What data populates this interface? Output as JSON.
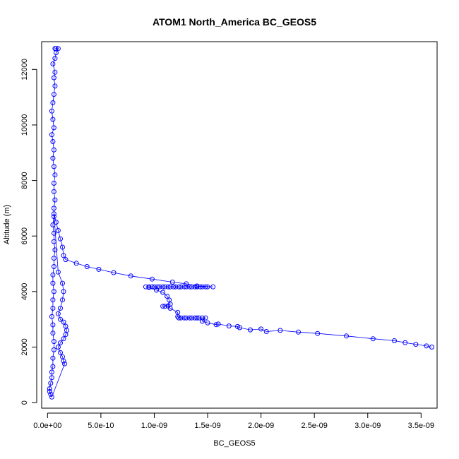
{
  "chart_data": {
    "type": "scatter",
    "title": "ATOM1 North_America BC_GEOS5",
    "xlabel": "BC_GEOS5",
    "ylabel": "Altitude (m)",
    "xlim": [
      -5.5e-11,
      3.65e-09
    ],
    "ylim": [
      -200,
      13000
    ],
    "x_ticks": [
      0,
      5e-10,
      1e-09,
      1.5e-09,
      2e-09,
      2.5e-09,
      3e-09,
      3.5e-09
    ],
    "x_tick_labels": [
      "0.0e+00",
      "5.0e-10",
      "1.0e-09",
      "1.5e-09",
      "2.0e-09",
      "2.5e-09",
      "3.0e-09",
      "3.5e-09"
    ],
    "y_ticks": [
      0,
      2000,
      4000,
      6000,
      8000,
      10000,
      12000
    ],
    "y_tick_labels": [
      "0",
      "2000",
      "4000",
      "6000",
      "8000",
      "10000",
      "12000"
    ],
    "marker": "open-circle",
    "color": "#0000ff",
    "grid": false,
    "series": [
      {
        "points": [
          [
            3.6e-09,
            2000
          ],
          [
            3.55e-09,
            2040
          ],
          [
            3.45e-09,
            2100
          ],
          [
            3.35e-09,
            2160
          ],
          [
            3.25e-09,
            2230
          ],
          [
            3.05e-09,
            2300
          ],
          [
            2.8e-09,
            2400
          ],
          [
            2.53e-09,
            2490
          ],
          [
            2.35e-09,
            2540
          ],
          [
            2.18e-09,
            2600
          ],
          [
            2.05e-09,
            2560
          ],
          [
            2e-09,
            2650
          ],
          [
            1.9e-09,
            2620
          ],
          [
            1.8e-09,
            2700
          ],
          [
            1.78e-09,
            2740
          ],
          [
            1.7e-09,
            2760
          ],
          [
            1.6e-09,
            2830
          ],
          [
            1.58e-09,
            2810
          ],
          [
            1.5e-09,
            2870
          ],
          [
            1.45e-09,
            2930
          ],
          [
            1.48e-09,
            3050
          ],
          [
            1.45e-09,
            3050
          ],
          [
            1.42e-09,
            3050
          ],
          [
            1.4e-09,
            3050
          ],
          [
            1.38e-09,
            3050
          ],
          [
            1.35e-09,
            3050
          ],
          [
            1.33e-09,
            3050
          ],
          [
            1.3e-09,
            3050
          ],
          [
            1.28e-09,
            3050
          ],
          [
            1.25e-09,
            3050
          ],
          [
            1.23e-09,
            3050
          ],
          [
            1.22e-09,
            3100
          ],
          [
            1.22e-09,
            3250
          ],
          [
            1.15e-09,
            3400
          ],
          [
            1.13e-09,
            3480
          ],
          [
            1.1e-09,
            3470
          ],
          [
            1.08e-09,
            3470
          ],
          [
            1.15e-09,
            3550
          ],
          [
            1.14e-09,
            3700
          ],
          [
            1.12e-09,
            3830
          ],
          [
            1.08e-09,
            3970
          ],
          [
            1.02e-09,
            4050
          ],
          [
            9.5e-10,
            4150
          ],
          [
            9.2e-10,
            4170
          ],
          [
            9.5e-10,
            4170
          ],
          [
            9.8e-10,
            4170
          ],
          [
            1e-09,
            4170
          ],
          [
            1.03e-09,
            4170
          ],
          [
            1.05e-09,
            4170
          ],
          [
            1.08e-09,
            4170
          ],
          [
            1.1e-09,
            4170
          ],
          [
            1.13e-09,
            4170
          ],
          [
            1.15e-09,
            4170
          ],
          [
            1.18e-09,
            4170
          ],
          [
            1.2e-09,
            4170
          ],
          [
            1.23e-09,
            4170
          ],
          [
            1.25e-09,
            4170
          ],
          [
            1.28e-09,
            4170
          ],
          [
            1.3e-09,
            4170
          ],
          [
            1.33e-09,
            4170
          ],
          [
            1.35e-09,
            4170
          ],
          [
            1.38e-09,
            4170
          ],
          [
            1.4e-09,
            4170
          ],
          [
            1.43e-09,
            4170
          ],
          [
            1.45e-09,
            4170
          ],
          [
            1.48e-09,
            4170
          ],
          [
            1.5e-09,
            4170
          ],
          [
            1.55e-09,
            4170
          ],
          [
            1.4e-09,
            4200
          ],
          [
            1.3e-09,
            4280
          ],
          [
            1.17e-09,
            4340
          ],
          [
            9.8e-10,
            4450
          ],
          [
            7.8e-10,
            4560
          ],
          [
            6.2e-10,
            4680
          ],
          [
            4.8e-10,
            4800
          ],
          [
            3.7e-10,
            4900
          ],
          [
            2.7e-10,
            5020
          ],
          [
            1.7e-10,
            5150
          ],
          [
            1.5e-10,
            5300
          ],
          [
            1.4e-10,
            5600
          ],
          [
            1.2e-10,
            5900
          ],
          [
            1e-10,
            6200
          ],
          [
            8e-11,
            6500
          ],
          [
            6e-11,
            6800
          ],
          [
            1e-10,
            4700
          ],
          [
            1.4e-10,
            4300
          ],
          [
            1.5e-10,
            4000
          ],
          [
            1.4e-10,
            3700
          ],
          [
            1.2e-10,
            3400
          ],
          [
            1e-10,
            3200
          ],
          [
            1.2e-10,
            3000
          ],
          [
            1.5e-10,
            2900
          ],
          [
            1.7e-10,
            2750
          ],
          [
            1.8e-10,
            2600
          ],
          [
            1.7e-10,
            2450
          ],
          [
            1.5e-10,
            2300
          ],
          [
            1.2e-10,
            2150
          ],
          [
            1e-10,
            2000
          ],
          [
            1.2e-10,
            1800
          ],
          [
            1.4e-10,
            1650
          ],
          [
            1.5e-10,
            1500
          ],
          [
            1.6e-10,
            1400
          ],
          [
            4e-11,
            200
          ],
          [
            3e-11,
            300
          ],
          [
            2e-11,
            400
          ],
          [
            2e-11,
            500
          ],
          [
            3e-11,
            700
          ],
          [
            4e-11,
            900
          ],
          [
            4e-11,
            1100
          ],
          [
            5e-11,
            1300
          ],
          [
            5e-11,
            1600
          ],
          [
            6e-11,
            1900
          ],
          [
            6e-11,
            2200
          ],
          [
            5e-11,
            2500
          ],
          [
            5e-11,
            2800
          ],
          [
            4e-11,
            3100
          ],
          [
            5e-11,
            3400
          ],
          [
            5e-11,
            3700
          ],
          [
            6e-11,
            4000
          ],
          [
            5e-11,
            4300
          ],
          [
            5e-11,
            4600
          ],
          [
            6e-11,
            4900
          ],
          [
            6e-11,
            5200
          ],
          [
            7e-11,
            5500
          ],
          [
            6e-11,
            5800
          ],
          [
            6e-11,
            6100
          ],
          [
            5e-11,
            6400
          ],
          [
            6e-11,
            6700
          ],
          [
            6e-11,
            7000
          ],
          [
            7e-11,
            7300
          ],
          [
            6e-11,
            7600
          ],
          [
            6e-11,
            7900
          ],
          [
            7e-11,
            8200
          ],
          [
            6e-11,
            8500
          ],
          [
            5e-11,
            8800
          ],
          [
            6e-11,
            9100
          ],
          [
            5e-11,
            9400
          ],
          [
            4e-11,
            9650
          ],
          [
            6e-11,
            9900
          ],
          [
            5e-11,
            10200
          ],
          [
            4e-11,
            10500
          ],
          [
            5e-11,
            10800
          ],
          [
            6e-11,
            11100
          ],
          [
            7e-11,
            11400
          ],
          [
            6e-11,
            11700
          ],
          [
            7e-11,
            11900
          ],
          [
            5e-11,
            12200
          ],
          [
            7e-11,
            12400
          ],
          [
            8e-11,
            12600
          ],
          [
            1e-10,
            12750
          ],
          [
            8e-11,
            12750
          ],
          [
            7e-11,
            12750
          ]
        ]
      }
    ]
  }
}
